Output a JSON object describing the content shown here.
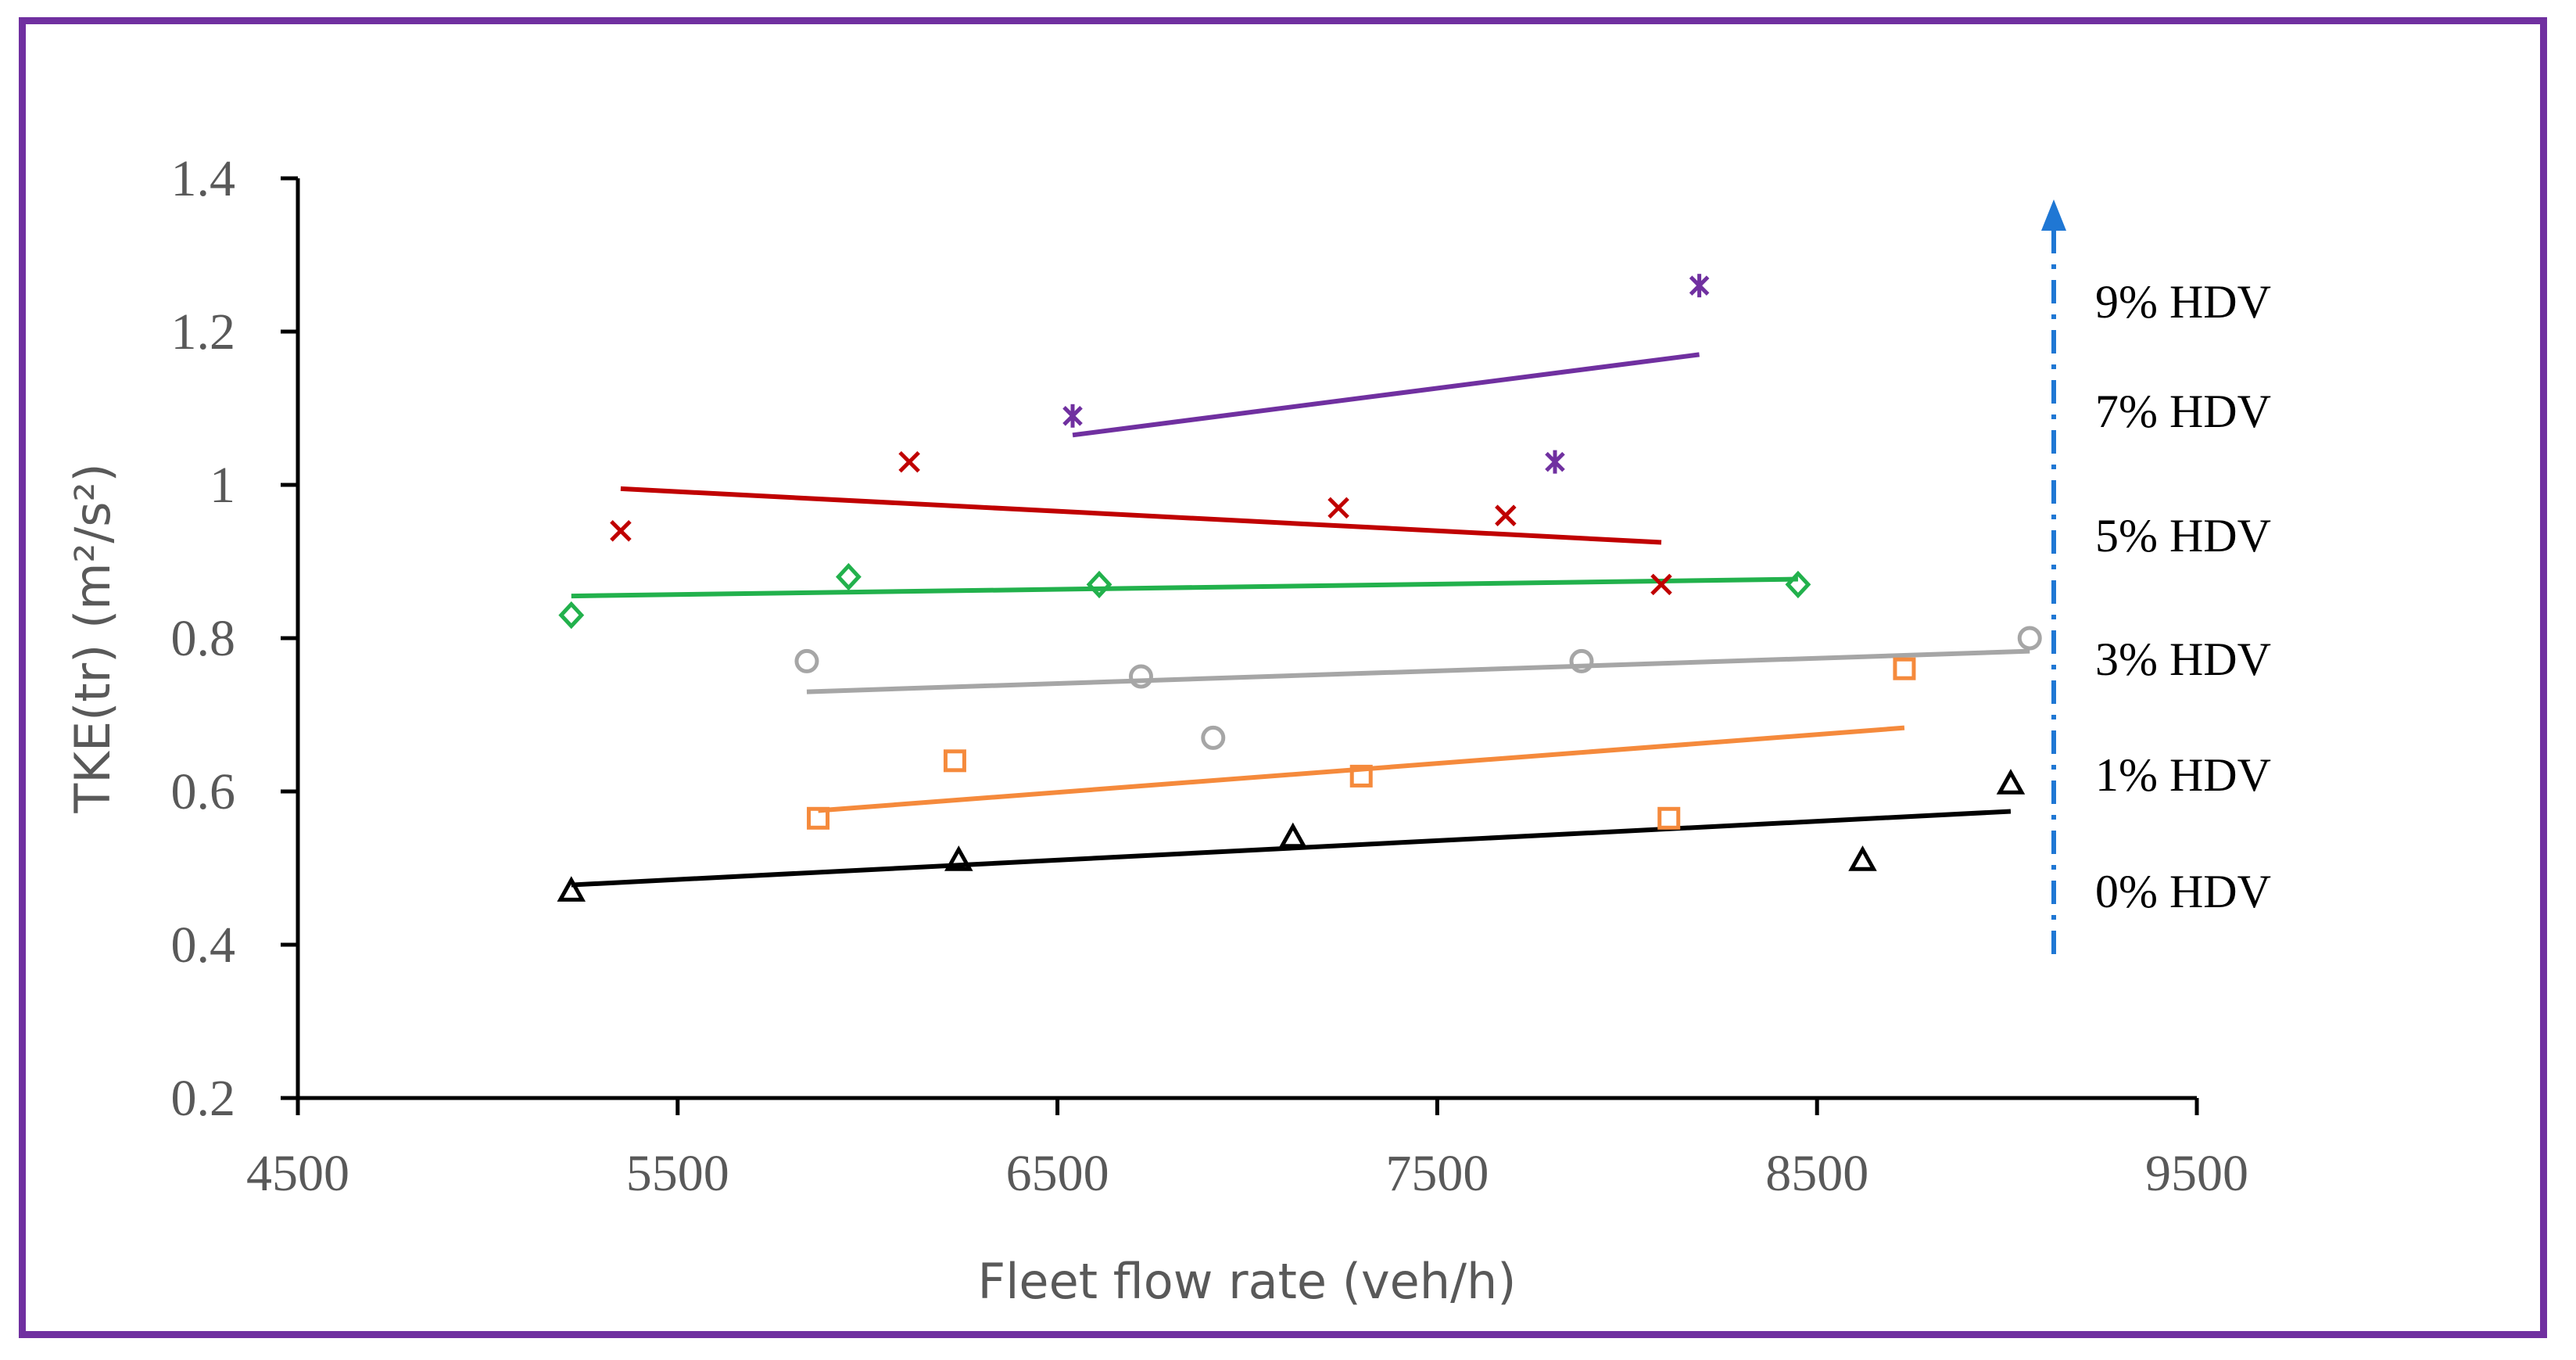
{
  "chart_data": {
    "type": "scatter",
    "title": "",
    "xlabel": "Fleet flow rate (veh/h)",
    "ylabel": "TKE(tr) (m²/s²)",
    "xlim": [
      4500,
      9500
    ],
    "ylim": [
      0.2,
      1.4
    ],
    "xticks": [
      "4500",
      "5500",
      "6500",
      "7500",
      "8500",
      "9500"
    ],
    "yticks": [
      "0.2",
      "0.4",
      "0.6",
      "0.8",
      "1",
      "1.2",
      "1.4"
    ],
    "grid": false,
    "trend_lines": "linear",
    "series": [
      {
        "name": "0% HDV",
        "color": "#000000",
        "marker": "triangle",
        "x": [
          5220,
          6240,
          7120,
          8620,
          9010
        ],
        "y": [
          0.47,
          0.51,
          0.54,
          0.51,
          0.61
        ],
        "trend": {
          "x": [
            5220,
            9010
          ],
          "y": [
            0.478,
            0.574
          ]
        }
      },
      {
        "name": "1% HDV",
        "color": "#f58a3c",
        "marker": "square",
        "x": [
          5870,
          6230,
          7300,
          8110,
          8730
        ],
        "y": [
          0.565,
          0.64,
          0.62,
          0.565,
          0.76
        ],
        "trend": {
          "x": [
            5870,
            8730
          ],
          "y": [
            0.575,
            0.683
          ]
        }
      },
      {
        "name": "3% HDV",
        "color": "#a6a6a6",
        "marker": "circle",
        "x": [
          5840,
          6720,
          6910,
          7880,
          9060
        ],
        "y": [
          0.77,
          0.75,
          0.67,
          0.77,
          0.8
        ],
        "trend": {
          "x": [
            5840,
            9060
          ],
          "y": [
            0.73,
            0.783
          ]
        }
      },
      {
        "name": "5% HDV",
        "color": "#22b14c",
        "marker": "diamond",
        "x": [
          5220,
          5950,
          6610,
          8450
        ],
        "y": [
          0.83,
          0.88,
          0.87,
          0.87
        ],
        "trend": {
          "x": [
            5220,
            8450
          ],
          "y": [
            0.855,
            0.877
          ]
        }
      },
      {
        "name": "7% HDV",
        "color": "#c00000",
        "marker": "x",
        "x": [
          5350,
          6110,
          7240,
          7680,
          8090
        ],
        "y": [
          0.94,
          1.03,
          0.97,
          0.96,
          0.87
        ],
        "trend": {
          "x": [
            5350,
            8090
          ],
          "y": [
            0.995,
            0.925
          ]
        }
      },
      {
        "name": "9% HDV",
        "color": "#7030a0",
        "marker": "star",
        "x": [
          6540,
          7810,
          8190
        ],
        "y": [
          1.09,
          1.03,
          1.26
        ],
        "trend": {
          "x": [
            6540,
            8190
          ],
          "y": [
            1.065,
            1.17
          ]
        }
      }
    ],
    "annotation": {
      "arrow_color": "#1f77d4",
      "arrow_style": "dash-dot",
      "labels": [
        "0% HDV",
        "1% HDV",
        "3% HDV",
        "5% HDV",
        "7% HDV",
        "9% HDV"
      ]
    }
  }
}
